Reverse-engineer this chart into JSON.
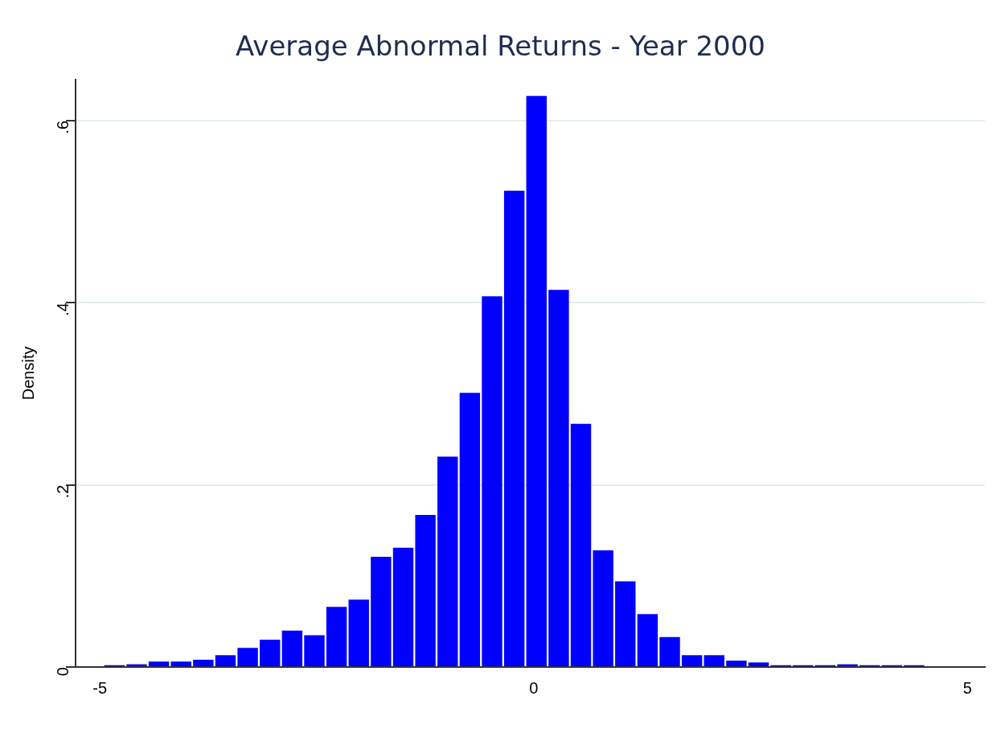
{
  "chart_data": {
    "type": "histogram",
    "title": "Average Abnormal Returns - Year 2000",
    "ylabel": "Density",
    "bins": [
      -4.96,
      -4.704,
      -4.448,
      -4.192,
      -3.936,
      -3.68,
      -3.424,
      -3.168,
      -2.912,
      -2.656,
      -2.4,
      -2.144,
      -1.888,
      -1.632,
      -1.376,
      -1.12,
      -0.864,
      -0.608,
      -0.352,
      -0.096,
      0.16,
      0.416,
      0.672,
      0.928,
      1.184,
      1.44,
      1.696,
      1.952,
      2.208,
      2.464,
      2.72,
      2.976,
      3.232,
      3.488,
      3.744,
      4,
      4.256,
      4.512
    ],
    "values": [
      0.002,
      0.003,
      0.006,
      0.006,
      0.008,
      0.013,
      0.021,
      0.03,
      0.04,
      0.035,
      0.066,
      0.074,
      0.121,
      0.131,
      0.167,
      0.231,
      0.301,
      0.407,
      0.523,
      0.627,
      0.414,
      0.267,
      0.128,
      0.094,
      0.058,
      0.033,
      0.013,
      0.013,
      0.007,
      0.005,
      0.002,
      0.002,
      0.002,
      0.003,
      0.002,
      0.002,
      0.002
    ],
    "color": "#0000ff",
    "xlim": [
      -5.28,
      5.2
    ],
    "xticks": [
      -5,
      0,
      5
    ],
    "ylim": [
      0,
      0.645
    ],
    "yticks": [
      {
        "value": 0,
        "label": "0"
      },
      {
        "value": 0.2,
        "label": ".2"
      },
      {
        "value": 0.4,
        "label": ".4"
      },
      {
        "value": 0.6,
        "label": ".6"
      }
    ],
    "grid": "y"
  }
}
